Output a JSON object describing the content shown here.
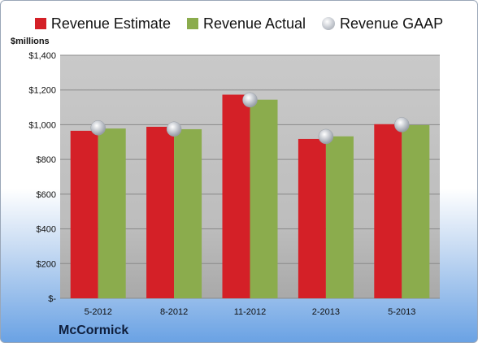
{
  "chart_data": {
    "type": "bar",
    "categories": [
      "5-2012",
      "8-2012",
      "11-2012",
      "2-2013",
      "5-2013"
    ],
    "series": [
      {
        "name": "Revenue Estimate",
        "values": [
          965,
          988,
          1173,
          918,
          1003
        ],
        "color": "#d42027"
      },
      {
        "name": "Revenue Actual",
        "values": [
          978,
          974,
          1144,
          933,
          998
        ],
        "color": "#8bac4d"
      },
      {
        "name": "Revenue GAAP",
        "values": [
          982,
          975,
          1143,
          932,
          1000
        ],
        "color": "#c4c8cf",
        "marker": "circle"
      }
    ],
    "ylabel": "$millions",
    "ylim": [
      0,
      1400
    ],
    "yticks": [
      0,
      200,
      400,
      600,
      800,
      1000,
      1200,
      1400
    ],
    "ytick_labels": [
      "$-",
      "$200",
      "$400",
      "$600",
      "$800",
      "$1,000",
      "$1,200",
      "$1,400"
    ],
    "grid": true,
    "legend_position": "top",
    "plot_background": "#c0c0c0"
  },
  "footer": {
    "company": "McCormick"
  }
}
